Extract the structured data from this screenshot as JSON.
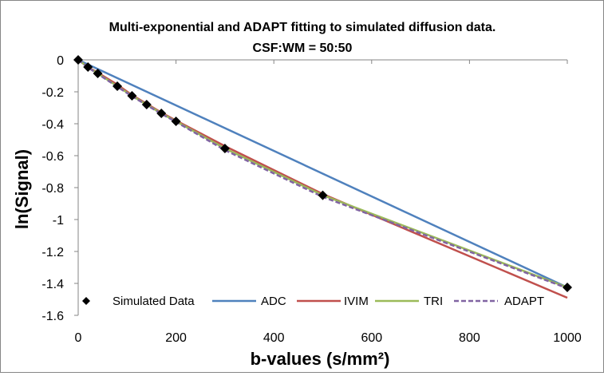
{
  "chart_data": {
    "type": "line",
    "title": "Multi-exponential and ADAPT fitting to simulated diffusion data.",
    "subtitle": "CSF:WM = 50:50",
    "xlabel": "b-values (s/mm²)",
    "ylabel": "ln(Signal)",
    "xlim": [
      0,
      1000
    ],
    "ylim": [
      -1.6,
      0
    ],
    "xticks": [
      0,
      200,
      400,
      600,
      800,
      1000
    ],
    "yticks": [
      0,
      -0.2,
      -0.4,
      -0.6,
      -0.8,
      -1,
      -1.2,
      -1.4,
      -1.6
    ],
    "xtick_labels": [
      "0",
      "200",
      "400",
      "600",
      "800",
      "1000"
    ],
    "ytick_labels": [
      "0",
      "-0.2",
      "-0.4",
      "-0.6",
      "-0.8",
      "-1",
      "-1.2",
      "-1.4",
      "-1.6"
    ],
    "grid": false,
    "legend_position": "bottom-inside",
    "series": [
      {
        "name": "Simulated Data",
        "style": "markers",
        "marker": "diamond",
        "color": "#000000",
        "x": [
          0,
          20,
          40,
          80,
          110,
          140,
          170,
          200,
          300,
          500,
          1000
        ],
        "y": [
          0,
          -0.045,
          -0.085,
          -0.165,
          -0.225,
          -0.28,
          -0.335,
          -0.385,
          -0.555,
          -0.848,
          -1.425
        ]
      },
      {
        "name": "ADC",
        "style": "solid",
        "color": "#4f81bd",
        "x": [
          0,
          1000
        ],
        "y": [
          0,
          -1.425
        ]
      },
      {
        "name": "IVIM",
        "style": "solid",
        "color": "#c0504d",
        "x": [
          0,
          20,
          40,
          80,
          110,
          140,
          170,
          200,
          300,
          500,
          1000
        ],
        "y": [
          0,
          -0.045,
          -0.08,
          -0.155,
          -0.22,
          -0.275,
          -0.33,
          -0.38,
          -0.54,
          -0.84,
          -1.49
        ]
      },
      {
        "name": "TRI",
        "style": "solid",
        "color": "#9bbb59",
        "x": [
          0,
          20,
          40,
          80,
          110,
          140,
          170,
          200,
          300,
          500,
          1000
        ],
        "y": [
          0,
          -0.045,
          -0.085,
          -0.165,
          -0.225,
          -0.28,
          -0.335,
          -0.385,
          -0.555,
          -0.848,
          -1.425
        ]
      },
      {
        "name": "ADAPT",
        "style": "dashed",
        "color": "#8064a2",
        "x": [
          0,
          20,
          40,
          80,
          110,
          140,
          170,
          200,
          300,
          500,
          1000
        ],
        "y": [
          0,
          -0.047,
          -0.088,
          -0.168,
          -0.228,
          -0.283,
          -0.338,
          -0.388,
          -0.565,
          -0.858,
          -1.43
        ]
      }
    ]
  }
}
